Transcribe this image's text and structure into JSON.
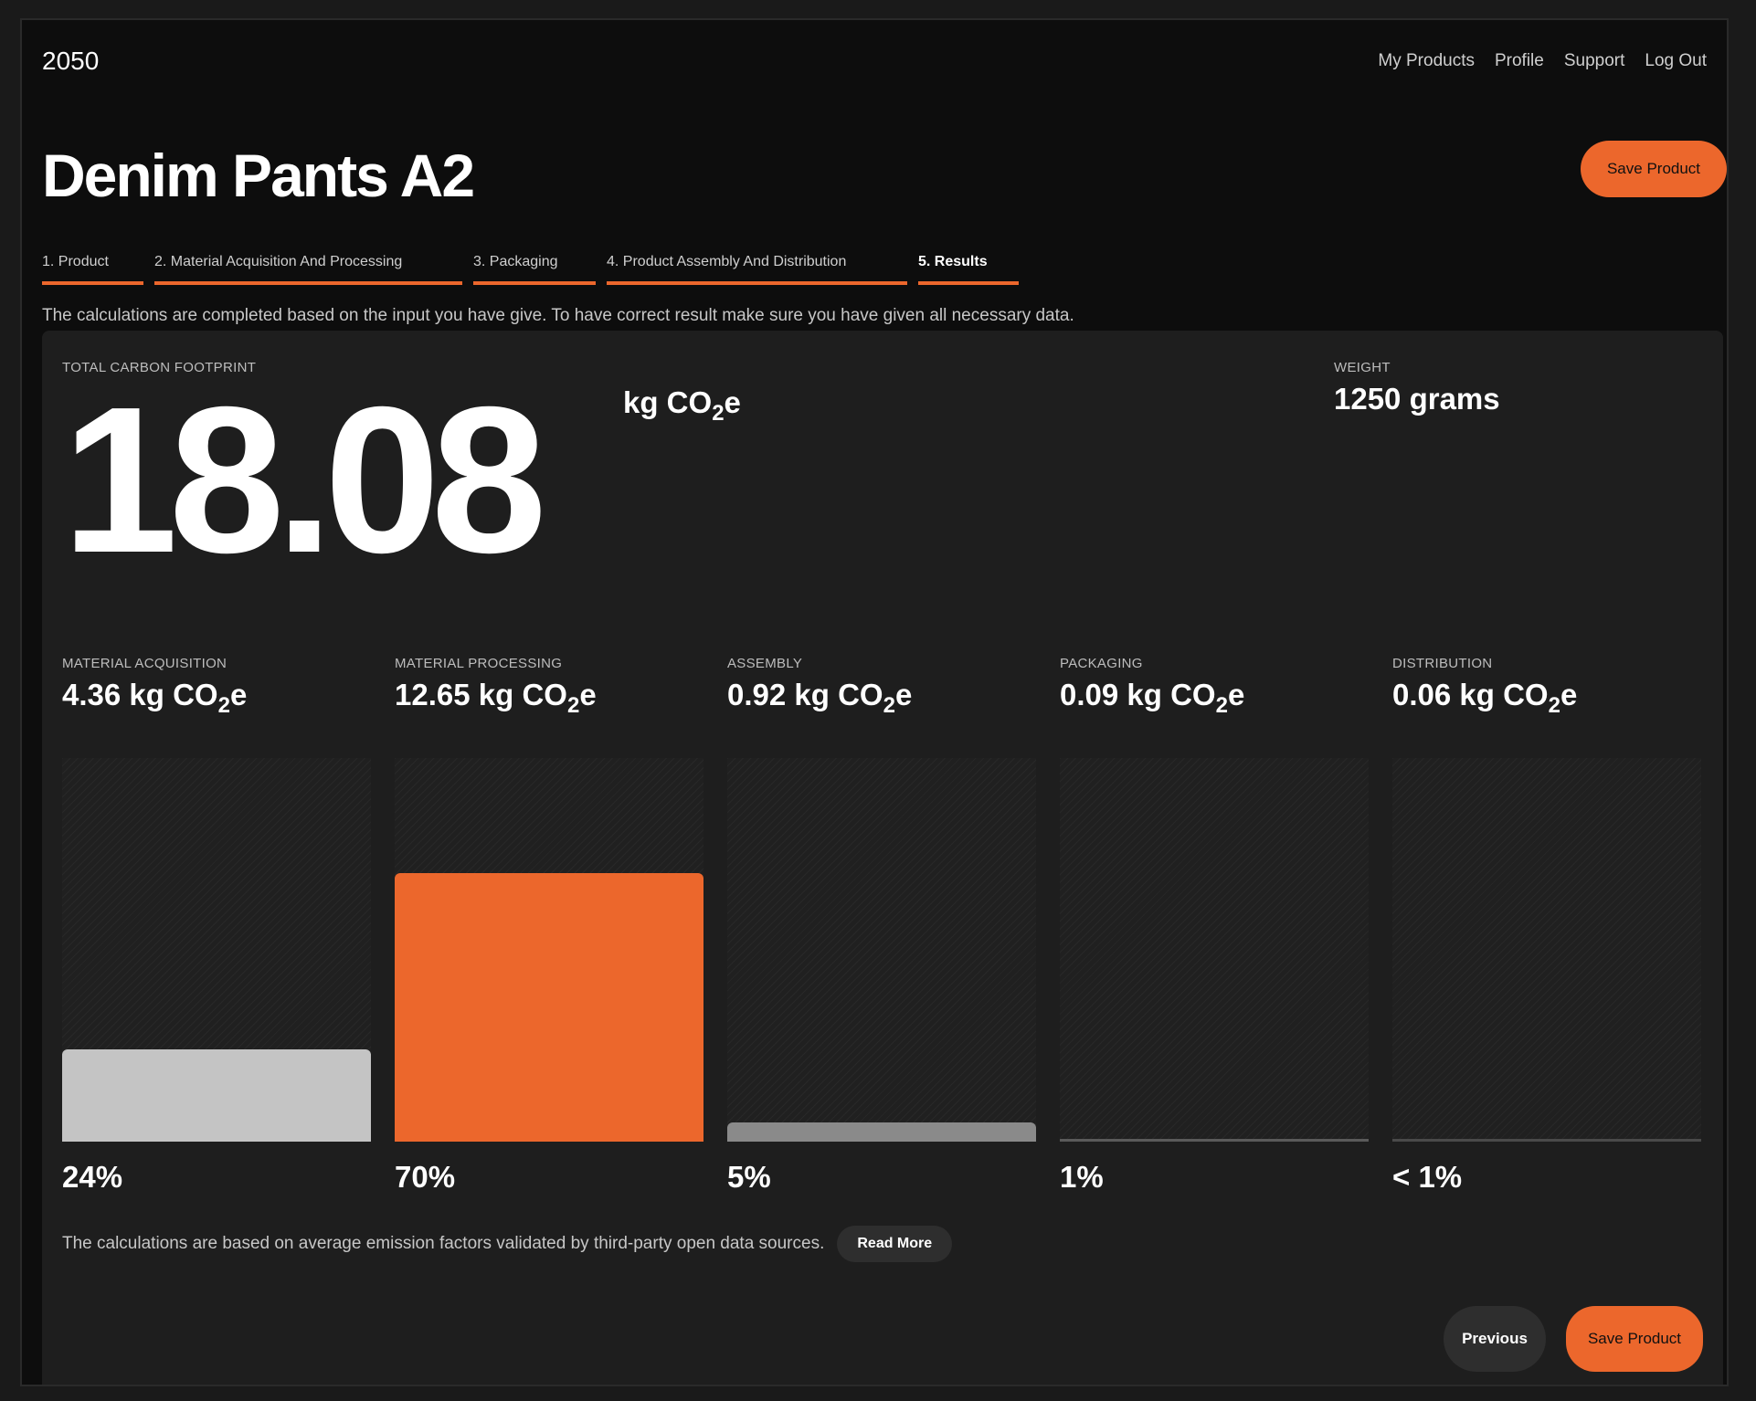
{
  "brand": {
    "logo": "2050"
  },
  "nav": {
    "items": [
      "My Products",
      "Profile",
      "Support",
      "Log Out"
    ]
  },
  "product": {
    "title": "Denim Pants A2",
    "save_label": "Save Product"
  },
  "tabs": [
    {
      "label": "1. Product",
      "active": false
    },
    {
      "label": "2. Material Acquisition And Processing",
      "active": false
    },
    {
      "label": "3. Packaging",
      "active": false
    },
    {
      "label": "4. Product Assembly And Distribution",
      "active": false
    },
    {
      "label": "5. Results",
      "active": true
    }
  ],
  "intro_text": "The calculations are completed based on the input you have give. To have correct result make sure you have given all necessary data.",
  "results": {
    "total_label": "TOTAL CARBON FOOTPRINT",
    "total_value": "18.08",
    "total_unit_prefix": "kg CO",
    "total_unit_sub": "2",
    "total_unit_suffix": "e",
    "weight_label": "WEIGHT",
    "weight_value": "1250 grams"
  },
  "chart_data": {
    "type": "bar",
    "categories": [
      "MATERIAL ACQUISITION",
      "MATERIAL PROCESSING",
      "ASSEMBLY",
      "PACKAGING",
      "DISTRIBUTION"
    ],
    "values": [
      4.36,
      12.65,
      0.92,
      0.09,
      0.06
    ],
    "value_labels": [
      "4.36",
      "12.65",
      "0.92",
      "0.09",
      "0.06"
    ],
    "unit_prefix": "kg CO",
    "unit_sub": "2",
    "unit_suffix": "e",
    "percent_labels": [
      "24%",
      "70%",
      "5%",
      "1%",
      "< 1%"
    ],
    "ylim": [
      0,
      18.08
    ],
    "colors": [
      "#c4c4c4",
      "#ec672c",
      "#8a8a8a",
      "#5a5a5a",
      "#4a4a4a"
    ]
  },
  "footer": {
    "note": "The calculations are based on average emission factors validated by third-party open data sources.",
    "read_more_label": "Read More",
    "previous_label": "Previous",
    "save_label": "Save Product"
  }
}
